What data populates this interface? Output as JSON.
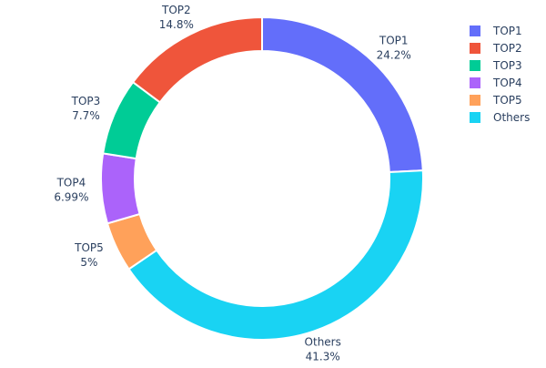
{
  "chart_data": {
    "type": "pie",
    "hole": true,
    "title": "",
    "direction": "clockwise",
    "start": "top",
    "legend_position": "top-right",
    "slices": [
      {
        "label": "TOP1",
        "value": 24.2,
        "text": "24.2%",
        "color": "#636efa"
      },
      {
        "label": "Others",
        "value": 41.3,
        "text": "41.3%",
        "color": "#19d3f3"
      },
      {
        "label": "TOP5",
        "value": 5,
        "text": "5%",
        "color": "#FFA15A"
      },
      {
        "label": "TOP4",
        "value": 6.99,
        "text": "6.99%",
        "color": "#ab63fa"
      },
      {
        "label": "TOP3",
        "value": 7.7,
        "text": "7.7%",
        "color": "#00cc96"
      },
      {
        "label": "TOP2",
        "value": 14.8,
        "text": "14.8%",
        "color": "#EF553B"
      }
    ],
    "legend": [
      {
        "label": "TOP1",
        "color": "#636efa"
      },
      {
        "label": "TOP2",
        "color": "#EF553B"
      },
      {
        "label": "TOP3",
        "color": "#00cc96"
      },
      {
        "label": "TOP4",
        "color": "#ab63fa"
      },
      {
        "label": "TOP5",
        "color": "#FFA15A"
      },
      {
        "label": "Others",
        "color": "#19d3f3"
      }
    ]
  }
}
